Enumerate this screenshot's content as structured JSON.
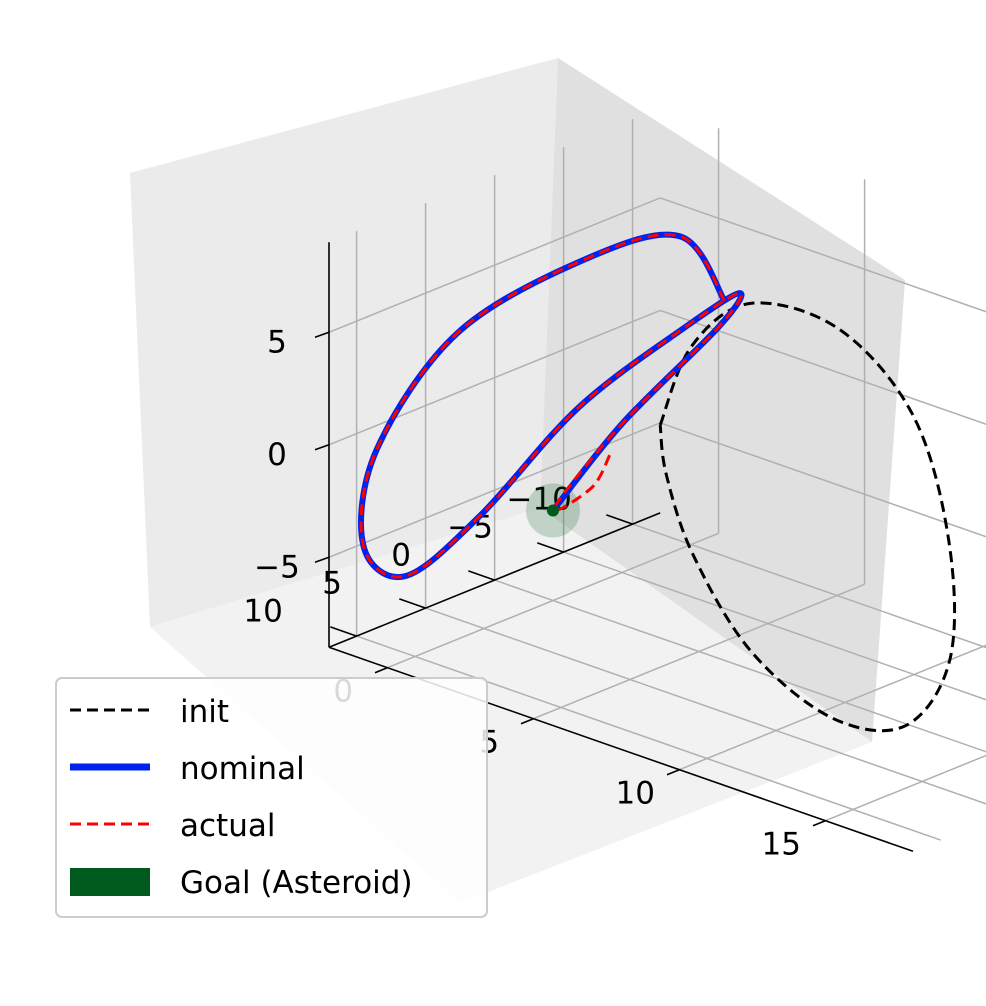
{
  "chart_data": {
    "type": "line",
    "projection": "3d",
    "title": "",
    "xlabel": "",
    "ylabel": "",
    "zlabel": "",
    "grid": true,
    "legend_position": "lower-left",
    "axes": {
      "x": {
        "ticks": [
          0,
          5,
          10,
          15
        ],
        "range": [
          -2,
          18
        ]
      },
      "y": {
        "ticks": [
          -10,
          -5,
          0,
          5,
          10
        ],
        "range": [
          -12,
          12
        ]
      },
      "z": {
        "ticks": [
          -5,
          0,
          5
        ],
        "range": [
          -9,
          9
        ]
      }
    },
    "series": [
      {
        "name": "init",
        "style": "dashed",
        "color": "#000000",
        "points": [
          [
            3.2,
            -1.0,
            0.0
          ],
          [
            4.5,
            -0.5,
            4.2
          ],
          [
            7.0,
            0.5,
            7.5
          ],
          [
            10.5,
            1.5,
            8.2
          ],
          [
            13.5,
            2.5,
            6.0
          ],
          [
            15.2,
            3.5,
            1.5
          ],
          [
            15.5,
            4.0,
            -3.5
          ],
          [
            14.0,
            4.0,
            -7.2
          ],
          [
            11.0,
            3.0,
            -8.5
          ],
          [
            7.5,
            1.5,
            -7.5
          ],
          [
            4.8,
            0.0,
            -4.8
          ],
          [
            3.5,
            -0.8,
            -2.0
          ],
          [
            3.2,
            -1.0,
            0.0
          ]
        ]
      },
      {
        "name": "nominal",
        "style": "solid",
        "color": "#0022ee",
        "points": [
          [
            0,
            0,
            -5
          ],
          [
            1.2,
            -2.5,
            -1.2
          ],
          [
            3.4,
            -4.8,
            3.5
          ],
          [
            4.6,
            -3.8,
            5.8
          ],
          [
            4.1,
            -1.0,
            4.8
          ],
          [
            1.7,
            1.7,
            0.8
          ],
          [
            -0.6,
            4.0,
            -4.5
          ],
          [
            -2.6,
            5.2,
            -7.8
          ],
          [
            -4.8,
            3.6,
            -7.8
          ],
          [
            -5.8,
            0.5,
            -4.8
          ],
          [
            -4.4,
            -2.4,
            0.3
          ],
          [
            -0.6,
            -3.6,
            5.0
          ],
          [
            3.8,
            -1.2,
            8.6
          ],
          [
            7.6,
            3.6,
            8.6
          ]
        ]
      },
      {
        "name": "actual",
        "style": "dashed",
        "color": "#ff0000",
        "points": [
          [
            1.8,
            -0.3,
            -1.8
          ],
          [
            1.1,
            -0.5,
            -3.6
          ],
          [
            0.1,
            0.1,
            -4.8
          ],
          [
            1.2,
            -2.5,
            -1.2
          ],
          [
            3.4,
            -4.8,
            3.5
          ],
          [
            4.6,
            -3.8,
            5.8
          ],
          [
            4.1,
            -1.0,
            4.8
          ],
          [
            1.7,
            1.7,
            0.8
          ],
          [
            -0.6,
            4.0,
            -4.5
          ],
          [
            -2.6,
            5.2,
            -7.8
          ],
          [
            -4.8,
            3.6,
            -7.8
          ],
          [
            -5.8,
            0.5,
            -4.8
          ],
          [
            -4.4,
            -2.4,
            0.3
          ],
          [
            -0.6,
            -3.6,
            5.0
          ],
          [
            3.8,
            -1.2,
            8.6
          ],
          [
            7.6,
            3.6,
            8.6
          ]
        ]
      }
    ],
    "goal": {
      "name": "Goal (Asteroid)",
      "position": [
        0,
        0,
        -5
      ],
      "color": "#005a1e"
    },
    "legend": [
      {
        "label": "init",
        "style": "dashed",
        "color": "#000000"
      },
      {
        "label": "nominal",
        "style": "solid",
        "color": "#0022ee"
      },
      {
        "label": "actual",
        "style": "dashed",
        "color": "#ff0000"
      },
      {
        "label": "Goal (Asteroid)",
        "style": "patch",
        "color": "#005a1e"
      }
    ]
  }
}
